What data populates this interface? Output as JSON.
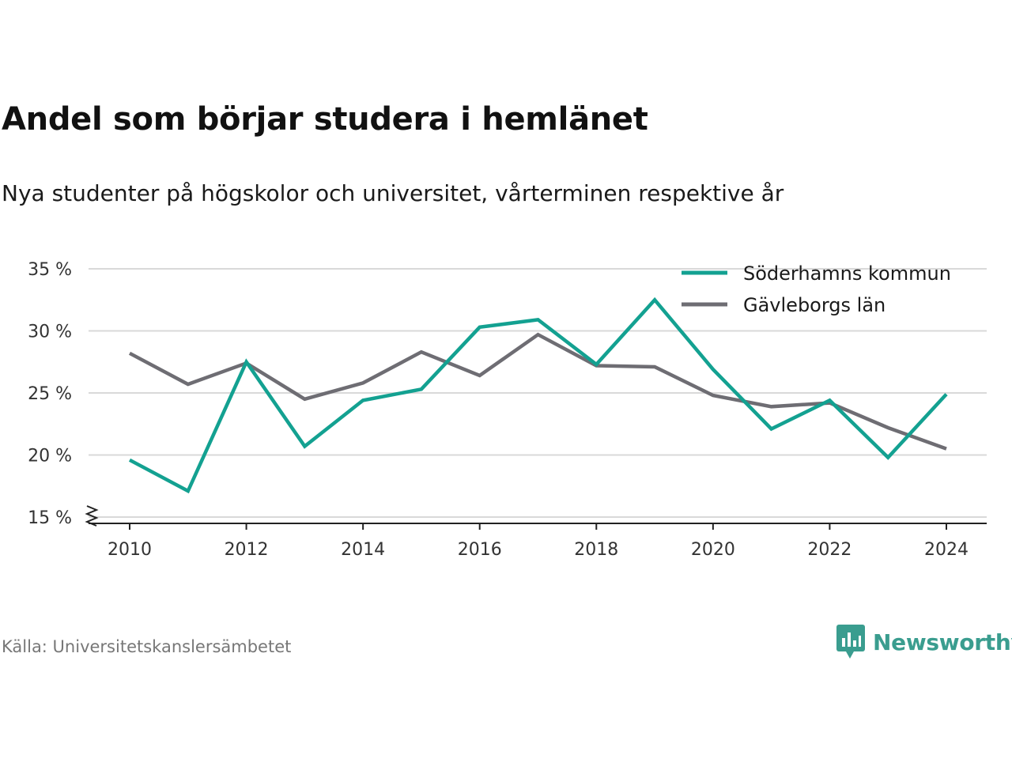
{
  "title": "Andel som börjar studera i hemlänet",
  "subtitle": "Nya studenter på högskolor och universitet, vårterminen respektive år",
  "source": "Källa: Universitetskanslersämbetet",
  "brand": {
    "name": "Newsworthy",
    "icon": "newsworthy-logo-icon",
    "color": "#3a9d8f"
  },
  "chart_data": {
    "type": "line",
    "x": [
      2010,
      2011,
      2012,
      2013,
      2014,
      2015,
      2016,
      2017,
      2018,
      2019,
      2020,
      2021,
      2022,
      2023,
      2024
    ],
    "series": [
      {
        "name": "Söderhamns kommun",
        "color": "#13a191",
        "values": [
          19.6,
          17.1,
          27.5,
          20.7,
          24.4,
          25.3,
          30.3,
          30.9,
          27.3,
          32.5,
          26.9,
          22.1,
          24.4,
          19.8,
          24.9
        ]
      },
      {
        "name": "Gävleborgs län",
        "color": "#6e6d73",
        "values": [
          28.2,
          25.7,
          27.4,
          24.5,
          25.8,
          28.3,
          26.4,
          29.7,
          27.2,
          27.1,
          24.8,
          23.9,
          24.2,
          22.2,
          20.5
        ]
      }
    ],
    "xticks": [
      2010,
      2012,
      2014,
      2016,
      2018,
      2020,
      2022,
      2024
    ],
    "xtick_labels": [
      "2010",
      "2012",
      "2014",
      "2016",
      "2018",
      "2020",
      "2022",
      "2024"
    ],
    "yticks": [
      15,
      20,
      25,
      30,
      35
    ],
    "ytick_labels": [
      "15 %",
      "20 %",
      "25 %",
      "30 %",
      "35 %"
    ],
    "ylim": [
      15,
      35
    ],
    "axis_break": true,
    "grid": true,
    "legend_position": "top-right"
  }
}
